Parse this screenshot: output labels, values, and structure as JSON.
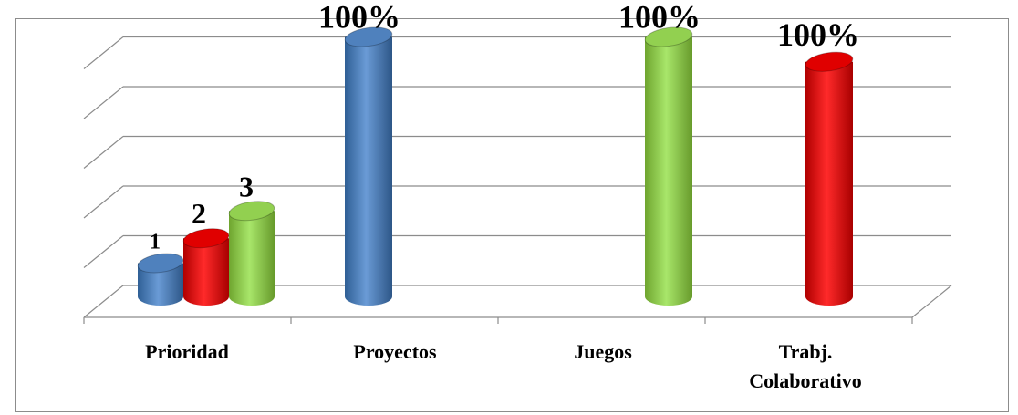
{
  "chart_data": {
    "type": "bar",
    "style": "3d-cylinder",
    "grid": true,
    "legend": "none",
    "ylim": [
      0,
      5
    ],
    "categories": [
      "Prioridad",
      "Proyectos",
      "Juegos",
      "Trabj. Colaborativo"
    ],
    "bars": [
      {
        "category": "Prioridad",
        "value": 0.45,
        "color": "#4f81bd",
        "label": "1"
      },
      {
        "category": "Prioridad",
        "value": 0.95,
        "color": "#e00000",
        "label": "2"
      },
      {
        "category": "Prioridad",
        "value": 1.5,
        "color": "#92d050",
        "label": "3"
      },
      {
        "category": "Proyectos",
        "value": 5,
        "color": "#4f81bd",
        "label": "100%"
      },
      {
        "category": "Juegos",
        "value": 5,
        "color": "#92d050",
        "label": "100%"
      },
      {
        "category": "Trabj. Colaborativo",
        "value": 4.5,
        "color": "#e00000",
        "label": "100%"
      }
    ]
  }
}
